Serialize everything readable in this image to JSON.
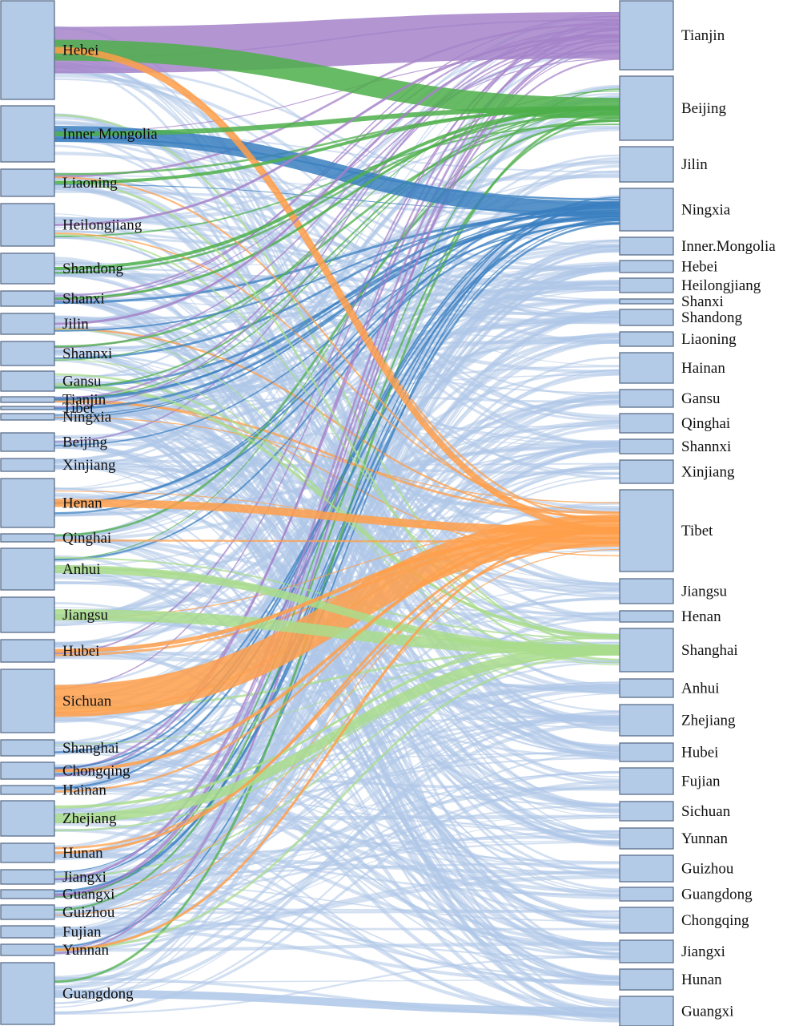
{
  "chart_data": {
    "type": "sankey",
    "colors": {
      "node": "#b4cbe8",
      "node_border": "#5b6e8a",
      "default_flow": "#aec7e8",
      "purple": "#a582c9",
      "green": "#4daf4a",
      "blue": "#3a7fc0",
      "orange": "#ff9f4a",
      "lightgreen": "#a9dc8c"
    },
    "sources": [
      "Hebei",
      "Inner Mongolia",
      "Liaoning",
      "Heilongjiang",
      "Shandong",
      "Shanxi",
      "Jilin",
      "Shannxi",
      "Gansu",
      "Tianjin",
      "Tibet",
      "Ningxia",
      "Beijing",
      "Xinjiang",
      "Henan",
      "Qinghai",
      "Anhui",
      "Jiangsu",
      "Hubei",
      "Sichuan",
      "Shanghai",
      "Chongqing",
      "Hainan",
      "Zhejiang",
      "Hunan",
      "Jiangxi",
      "Guangxi",
      "Guizhou",
      "Fujian",
      "Yunnan",
      "Guangdong"
    ],
    "targets": [
      "Tianjin",
      "Beijing",
      "Jilin",
      "Ningxia",
      "Inner.Mongolia",
      "Hebei",
      "Heilongjiang",
      "Shanxi",
      "Shandong",
      "Liaoning",
      "Hainan",
      "Gansu",
      "Qinghai",
      "Shannxi",
      "Xinjiang",
      "Tibet",
      "Jiangsu",
      "Henan",
      "Shanghai",
      "Anhui",
      "Zhejiang",
      "Hubei",
      "Fujian",
      "Sichuan",
      "Yunnan",
      "Guizhou",
      "Guangdong",
      "Chongqing",
      "Jiangxi",
      "Hunan",
      "Guangxi"
    ],
    "highlighted_flows": [
      {
        "source": "Hebei",
        "target": "Tianjin",
        "value": 58,
        "color": "purple"
      },
      {
        "source": "Hebei",
        "target": "Beijing",
        "value": 26,
        "color": "green"
      },
      {
        "source": "Inner Mongolia",
        "target": "Ningxia",
        "value": 20,
        "color": "blue"
      },
      {
        "source": "Sichuan",
        "target": "Tibet",
        "value": 40,
        "color": "orange"
      },
      {
        "source": "Hebei",
        "target": "Tibet",
        "value": 8,
        "color": "orange"
      },
      {
        "source": "Henan",
        "target": "Tibet",
        "value": 10,
        "color": "orange"
      },
      {
        "source": "Jiangsu",
        "target": "Shanghai",
        "value": 14,
        "color": "lightgreen"
      },
      {
        "source": "Anhui",
        "target": "Shanghai",
        "value": 10,
        "color": "lightgreen"
      },
      {
        "source": "Zhejiang",
        "target": "Shanghai",
        "value": 12,
        "color": "lightgreen"
      },
      {
        "source": "Inner Mongolia",
        "target": "Beijing",
        "value": 6,
        "color": "green"
      },
      {
        "source": "Liaoning",
        "target": "Beijing",
        "value": 4,
        "color": "green"
      },
      {
        "source": "Shandong",
        "target": "Beijing",
        "value": 4,
        "color": "green"
      },
      {
        "source": "Heilongjiang",
        "target": "Tianjin",
        "value": 3,
        "color": "purple"
      },
      {
        "source": "Shanxi",
        "target": "Beijing",
        "value": 3,
        "color": "green"
      },
      {
        "source": "Jilin",
        "target": "Tianjin",
        "value": 3,
        "color": "purple"
      },
      {
        "source": "Guangdong",
        "target": "Guangxi",
        "value": 10,
        "color": "default"
      },
      {
        "source": "Hubei",
        "target": "Tibet",
        "value": 5,
        "color": "orange"
      },
      {
        "source": "Chongqing",
        "target": "Tibet",
        "value": 4,
        "color": "orange"
      },
      {
        "source": "Hunan",
        "target": "Tibet",
        "value": 3,
        "color": "orange"
      },
      {
        "source": "Yunnan",
        "target": "Tibet",
        "value": 3,
        "color": "orange"
      }
    ]
  }
}
